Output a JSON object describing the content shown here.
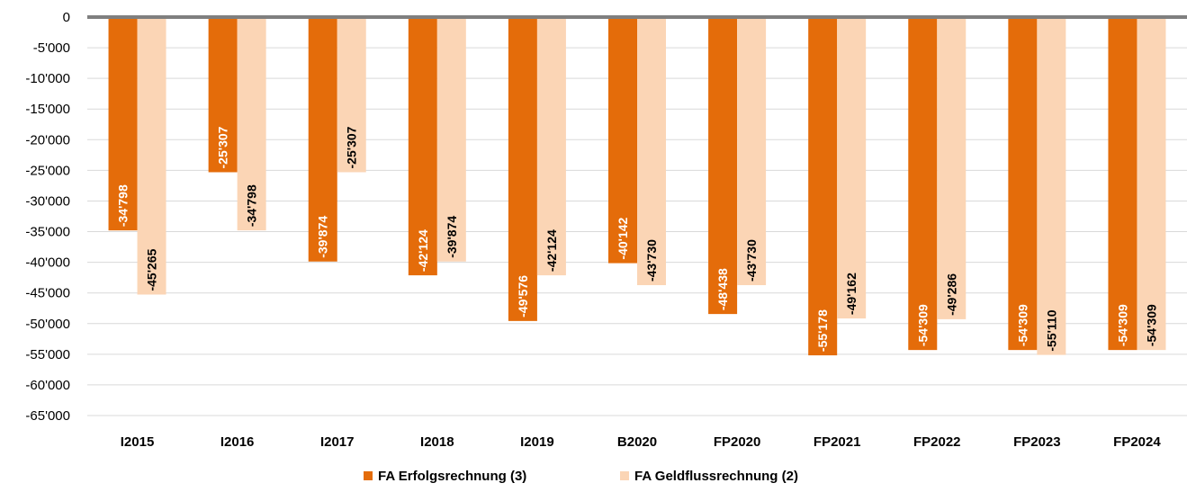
{
  "chart_data": {
    "type": "bar",
    "title": "",
    "xlabel": "",
    "ylabel": "",
    "categories": [
      "I2015",
      "I2016",
      "I2017",
      "I2018",
      "I2019",
      "B2020",
      "FP2020",
      "FP2021",
      "FP2022",
      "FP2023",
      "FP2024"
    ],
    "series": [
      {
        "name": "FA Erfolgsrechnung (3)",
        "color": "#E46C0A",
        "label_color": "#FFFFFF",
        "values": [
          -34798,
          -25307,
          -39874,
          -42124,
          -49576,
          -40142,
          -48438,
          -55178,
          -54309,
          -54309,
          -54309
        ],
        "labels": [
          "-34'798",
          "-25'307",
          "-39'874",
          "-42'124",
          "-49'576",
          "-40'142",
          "-48'438",
          "-55'178",
          "-54'309",
          "-54'309",
          "-54'309"
        ]
      },
      {
        "name": "FA Geldflussrechnung (2)",
        "color": "#FBD5B5",
        "label_color": "#000000",
        "values": [
          -45265,
          -34798,
          -25307,
          -39874,
          -42124,
          -43730,
          -43730,
          -49162,
          -49286,
          -55110,
          -54309
        ],
        "labels": [
          "-45'265",
          "-34'798",
          "-25'307",
          "-39'874",
          "-42'124",
          "-43'730",
          "-43'730",
          "-49'162",
          "-49'286",
          "-55'110",
          "-54'309"
        ]
      }
    ],
    "ylim": [
      -65000,
      0
    ],
    "yticks": [
      0,
      -5000,
      -10000,
      -15000,
      -20000,
      -25000,
      -30000,
      -35000,
      -40000,
      -45000,
      -50000,
      -55000,
      -60000,
      -65000
    ],
    "ytick_labels": [
      "0",
      "-5'000",
      "-10'000",
      "-15'000",
      "-20'000",
      "-25'000",
      "-30'000",
      "-35'000",
      "-40'000",
      "-45'000",
      "-50'000",
      "-55'000",
      "-60'000",
      "-65'000"
    ],
    "grid": true,
    "gridline_color": "#D9D9D9",
    "zero_line_color": "#7F7F7F",
    "legend_position": "bottom"
  }
}
